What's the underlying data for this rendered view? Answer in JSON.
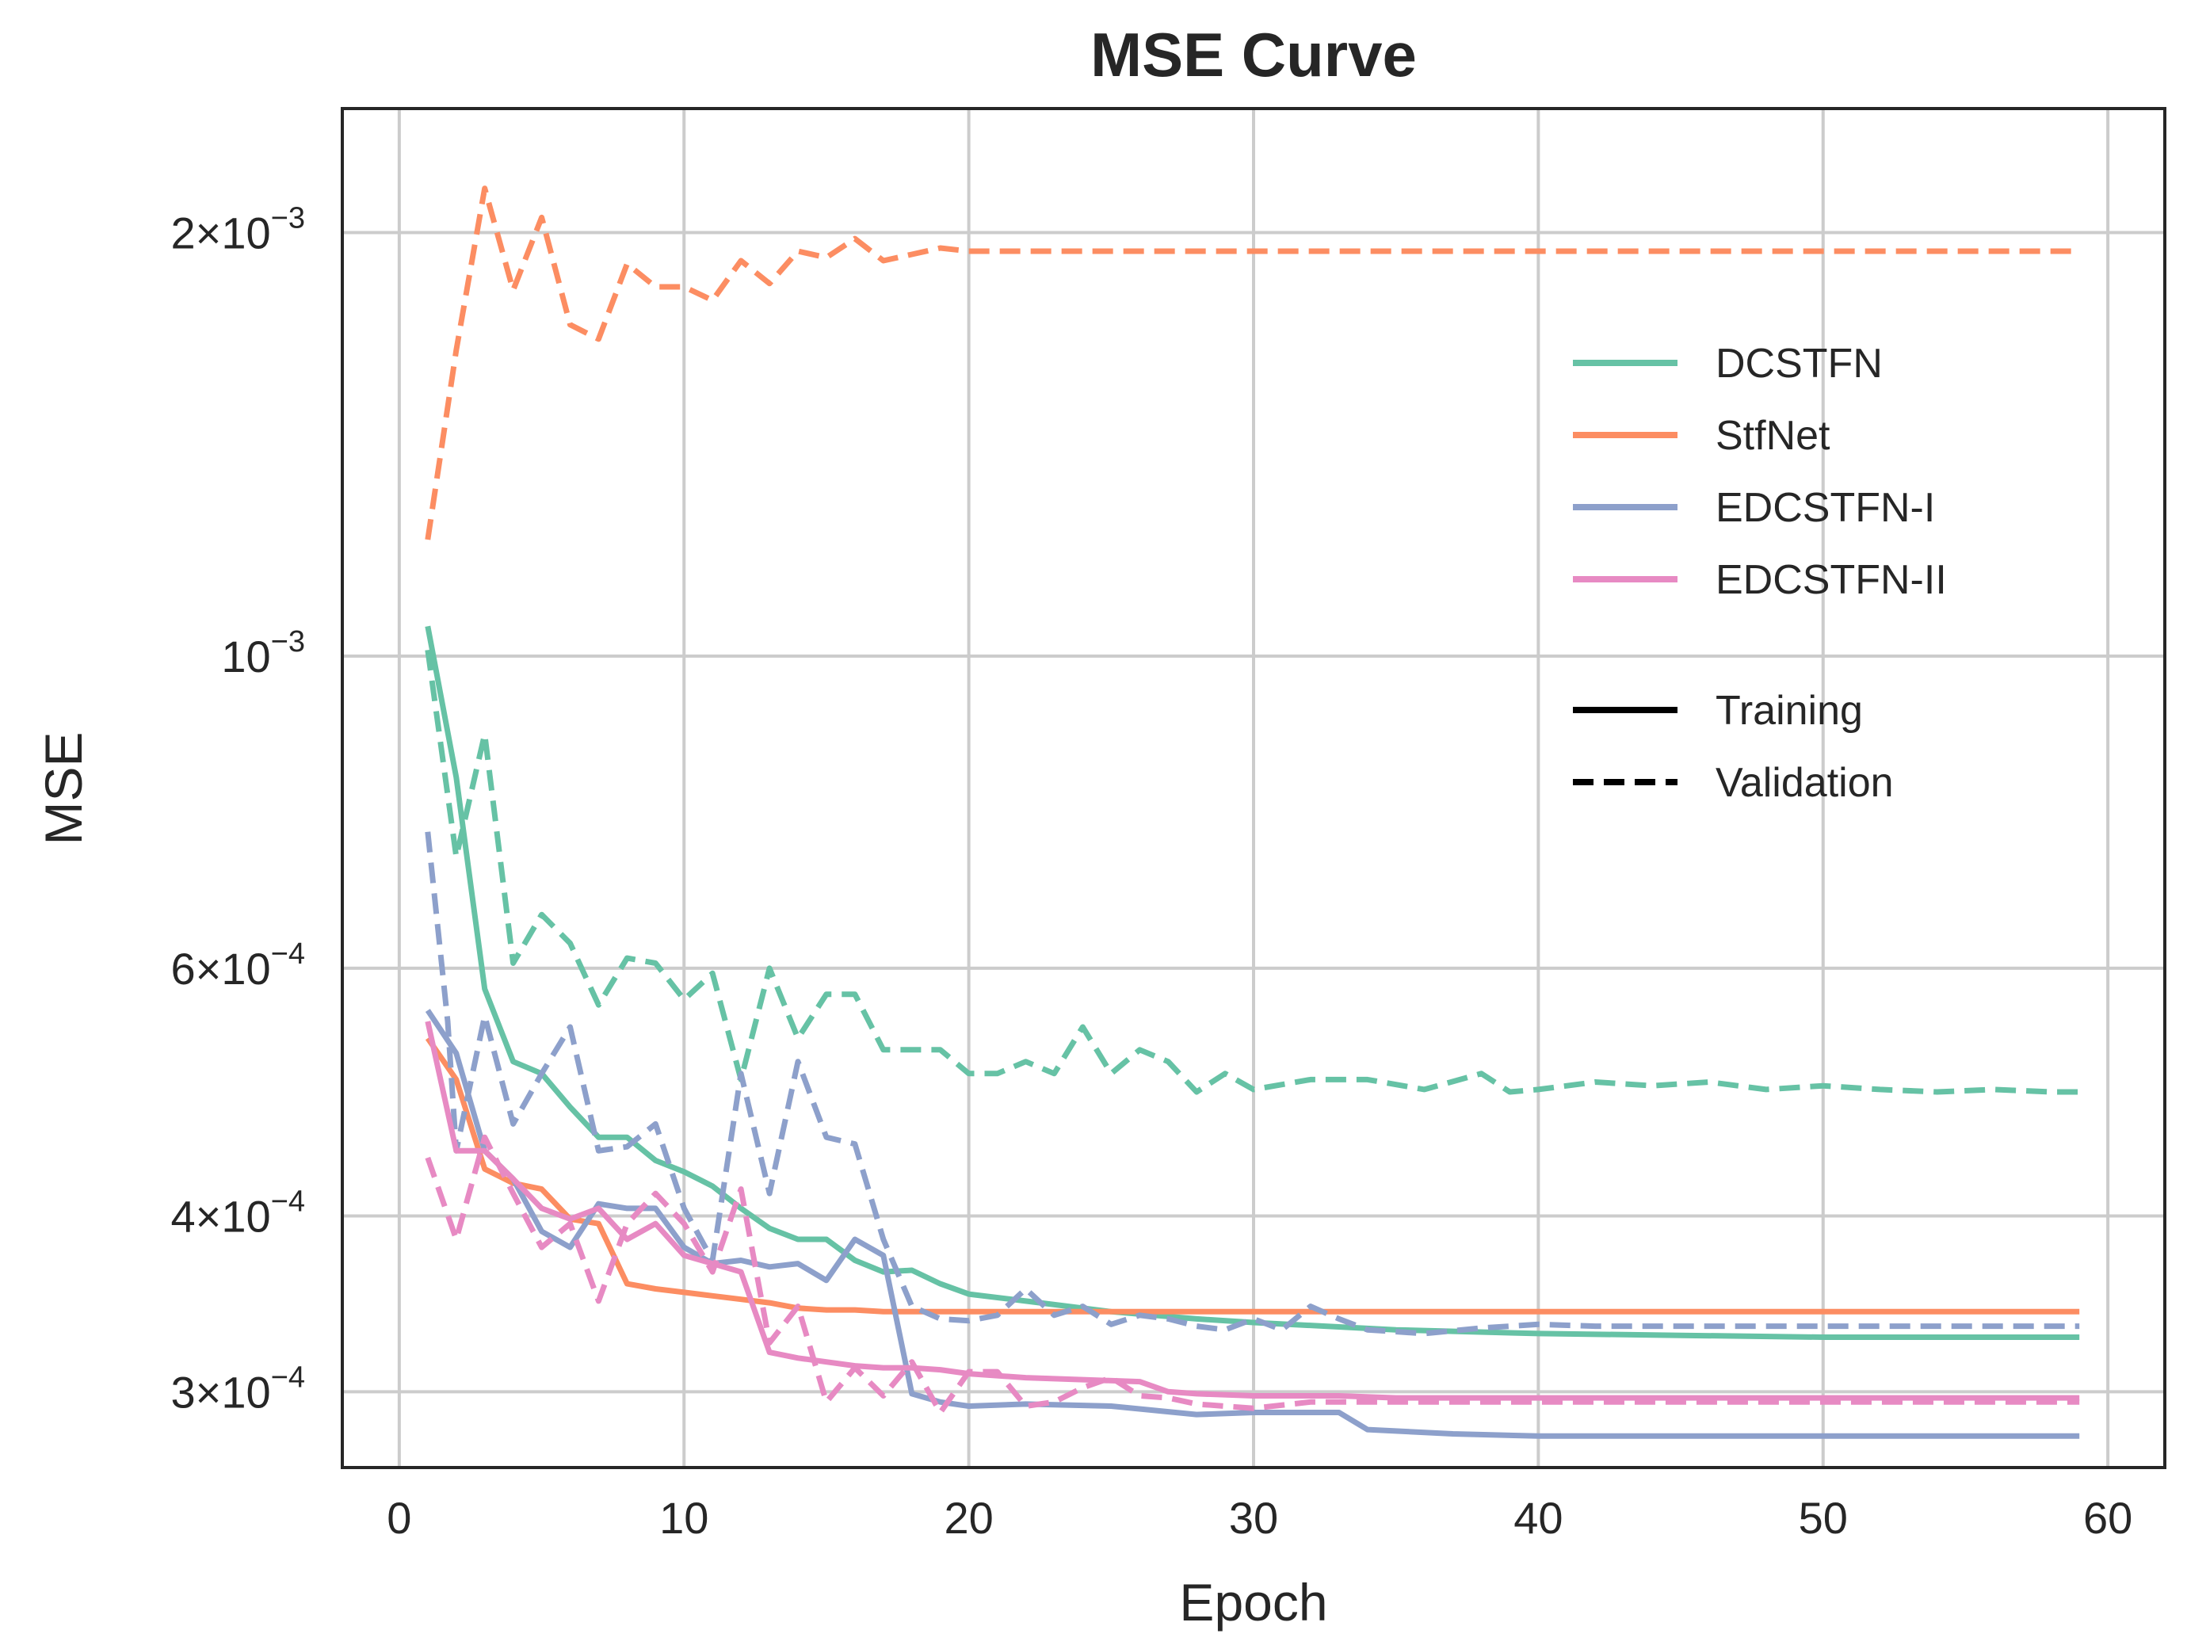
{
  "chart_data": {
    "type": "line",
    "title": "MSE Curve",
    "xlabel": "Epoch",
    "ylabel": "MSE",
    "yscale": "log",
    "xlim": [
      -2,
      62
    ],
    "ylim": [
      0.000265,
      0.00245
    ],
    "grid": true,
    "legend_position": "right",
    "x_ticks": [
      0,
      10,
      20,
      30,
      40,
      50,
      60
    ],
    "y_ticks": [
      {
        "value": 0.002,
        "base": "2×10",
        "exp": "−3"
      },
      {
        "value": 0.001,
        "base": "10",
        "exp": "−3"
      },
      {
        "value": 0.0006,
        "base": "6×10",
        "exp": "−4"
      },
      {
        "value": 0.0004,
        "base": "4×10",
        "exp": "−4"
      },
      {
        "value": 0.0003,
        "base": "3×10",
        "exp": "−4"
      }
    ],
    "series": [
      {
        "name": "DCSTFN",
        "color": "#66c2a5",
        "style": "solid",
        "x": [
          1,
          2,
          3,
          4,
          5,
          6,
          7,
          8,
          9,
          10,
          11,
          12,
          13,
          14,
          15,
          16,
          17,
          18,
          19,
          20,
          22,
          25,
          28,
          30,
          35,
          40,
          45,
          50,
          55,
          59
        ],
        "values": [
          0.00105,
          0.00082,
          0.00058,
          0.000515,
          0.000505,
          0.000478,
          0.000455,
          0.000455,
          0.000438,
          0.00043,
          0.00042,
          0.000405,
          0.000392,
          0.000385,
          0.000385,
          0.000372,
          0.000365,
          0.000366,
          0.000358,
          0.000352,
          0.000348,
          0.000342,
          0.000338,
          0.000336,
          0.000332,
          0.00033,
          0.000329,
          0.000328,
          0.000328,
          0.000328
        ]
      },
      {
        "name": "DCSTFN",
        "color": "#66c2a5",
        "style": "dashed",
        "x": [
          1,
          2,
          3,
          4,
          5,
          6,
          7,
          8,
          9,
          10,
          11,
          12,
          13,
          14,
          15,
          16,
          17,
          18,
          19,
          20,
          21,
          22,
          23,
          24,
          25,
          26,
          27,
          28,
          29,
          30,
          32,
          34,
          36,
          38,
          39,
          40,
          42,
          44,
          46,
          48,
          50,
          52,
          54,
          56,
          58,
          59
        ],
        "values": [
          0.00101,
          0.00072,
          0.00088,
          0.000605,
          0.000655,
          0.000625,
          0.000565,
          0.00061,
          0.000605,
          0.00057,
          0.000595,
          0.0005,
          0.0006,
          0.000535,
          0.000575,
          0.000575,
          0.000525,
          0.000525,
          0.000525,
          0.000505,
          0.000505,
          0.000515,
          0.000505,
          0.000545,
          0.000505,
          0.000525,
          0.000515,
          0.00049,
          0.000505,
          0.000492,
          0.0005,
          0.0005,
          0.000492,
          0.000505,
          0.00049,
          0.000492,
          0.000498,
          0.000495,
          0.000498,
          0.000492,
          0.000495,
          0.000492,
          0.00049,
          0.000492,
          0.00049,
          0.00049
        ]
      },
      {
        "name": "StfNet",
        "color": "#fc8d62",
        "style": "solid",
        "x": [
          1,
          2,
          3,
          4,
          5,
          6,
          7,
          8,
          9,
          10,
          11,
          12,
          13,
          14,
          15,
          16,
          17,
          18,
          19,
          20,
          25,
          30,
          35,
          40,
          45,
          50,
          55,
          59
        ],
        "values": [
          0.000535,
          0.0005,
          0.000432,
          0.000422,
          0.000418,
          0.000398,
          0.000395,
          0.000358,
          0.000355,
          0.000353,
          0.000351,
          0.000349,
          0.000347,
          0.000344,
          0.000343,
          0.000343,
          0.000342,
          0.000342,
          0.000342,
          0.000342,
          0.000342,
          0.000342,
          0.000342,
          0.000342,
          0.000342,
          0.000342,
          0.000342,
          0.000342
        ]
      },
      {
        "name": "StfNet",
        "color": "#fc8d62",
        "style": "dashed",
        "x": [
          1,
          2,
          3,
          4,
          5,
          6,
          7,
          8,
          9,
          10,
          11,
          12,
          13,
          14,
          15,
          16,
          17,
          18,
          19,
          20,
          25,
          30,
          35,
          40,
          45,
          50,
          55,
          59
        ],
        "values": [
          0.00121,
          0.00165,
          0.00215,
          0.00182,
          0.00205,
          0.00172,
          0.00168,
          0.0019,
          0.00183,
          0.00183,
          0.00179,
          0.00191,
          0.00184,
          0.00194,
          0.00192,
          0.00198,
          0.00191,
          0.00193,
          0.00195,
          0.00194,
          0.00194,
          0.00194,
          0.00194,
          0.00194,
          0.00194,
          0.00194,
          0.00194,
          0.00194
        ]
      },
      {
        "name": "EDCSTFN-I",
        "color": "#8da0cb",
        "style": "solid",
        "x": [
          1,
          2,
          3,
          4,
          5,
          6,
          7,
          8,
          9,
          10,
          11,
          12,
          13,
          14,
          15,
          16,
          17,
          18,
          19,
          20,
          22,
          25,
          28,
          30,
          33,
          34,
          37,
          40,
          45,
          50,
          55,
          59
        ],
        "values": [
          0.00056,
          0.000522,
          0.000445,
          0.000425,
          0.00039,
          0.00038,
          0.000408,
          0.000405,
          0.000405,
          0.00038,
          0.00037,
          0.000372,
          0.000368,
          0.00037,
          0.00036,
          0.000385,
          0.000375,
          0.000299,
          0.000295,
          0.000293,
          0.000294,
          0.000293,
          0.000289,
          0.00029,
          0.00029,
          0.000282,
          0.00028,
          0.000279,
          0.000279,
          0.000279,
          0.000279,
          0.000279
        ]
      },
      {
        "name": "EDCSTFN-I",
        "color": "#8da0cb",
        "style": "dashed",
        "x": [
          1,
          1.7,
          2,
          3,
          4,
          5,
          6,
          7,
          8,
          9,
          10,
          11,
          12,
          13,
          14,
          15,
          16,
          17,
          18,
          19,
          20,
          21,
          22,
          23,
          24,
          25,
          26,
          27,
          28,
          29,
          30,
          31,
          32,
          33,
          34,
          36,
          38,
          40,
          42,
          45,
          50,
          55,
          59
        ],
        "values": [
          0.00075,
          0.00055,
          0.000445,
          0.000555,
          0.000465,
          0.000505,
          0.000545,
          0.000445,
          0.000448,
          0.000465,
          0.000405,
          0.000372,
          0.000505,
          0.000415,
          0.000515,
          0.000455,
          0.00045,
          0.000385,
          0.000345,
          0.000338,
          0.000337,
          0.00034,
          0.000355,
          0.00034,
          0.000345,
          0.000335,
          0.00034,
          0.000338,
          0.000334,
          0.000332,
          0.000338,
          0.000332,
          0.000345,
          0.000338,
          0.000332,
          0.00033,
          0.000333,
          0.000335,
          0.000334,
          0.000334,
          0.000334,
          0.000334,
          0.000334
        ]
      },
      {
        "name": "EDCSTFN-II",
        "color": "#e78ac3",
        "style": "solid",
        "x": [
          1,
          2,
          3,
          4,
          5,
          6,
          7,
          8,
          9,
          10,
          11,
          12,
          13,
          14,
          15,
          16,
          17,
          18,
          19,
          20,
          22,
          24,
          26,
          27,
          28,
          30,
          33,
          35,
          40,
          45,
          50,
          55,
          59
        ],
        "values": [
          0.00055,
          0.000445,
          0.000445,
          0.000425,
          0.000405,
          0.000398,
          0.000405,
          0.000385,
          0.000395,
          0.000375,
          0.00037,
          0.000365,
          0.00032,
          0.000317,
          0.000315,
          0.000313,
          0.000312,
          0.000312,
          0.000311,
          0.000309,
          0.000307,
          0.000306,
          0.000305,
          0.0003,
          0.000299,
          0.000298,
          0.000298,
          0.000297,
          0.000297,
          0.000297,
          0.000297,
          0.000297,
          0.000297
        ]
      },
      {
        "name": "EDCSTFN-II",
        "color": "#e78ac3",
        "style": "dashed",
        "x": [
          1,
          2,
          3,
          4,
          5,
          6,
          7,
          8,
          9,
          10,
          11,
          12,
          13,
          14,
          15,
          16,
          17,
          18,
          19,
          20,
          21,
          22,
          23,
          24,
          25,
          26,
          27,
          28,
          30,
          32,
          34,
          36,
          40,
          45,
          50,
          55,
          59
        ],
        "values": [
          0.00044,
          0.000385,
          0.000455,
          0.000415,
          0.00038,
          0.000395,
          0.000348,
          0.000395,
          0.000415,
          0.000395,
          0.000365,
          0.000418,
          0.000325,
          0.000345,
          0.000295,
          0.000312,
          0.000298,
          0.000315,
          0.00029,
          0.00031,
          0.00031,
          0.000293,
          0.000295,
          0.000302,
          0.000307,
          0.000298,
          0.000297,
          0.000294,
          0.000292,
          0.000295,
          0.000295,
          0.000295,
          0.000295,
          0.000295,
          0.000295,
          0.000295,
          0.000295
        ]
      }
    ],
    "legend": {
      "models": [
        {
          "name": "DCSTFN",
          "color": "#66c2a5"
        },
        {
          "name": "StfNet",
          "color": "#fc8d62"
        },
        {
          "name": "EDCSTFN-I",
          "color": "#8da0cb"
        },
        {
          "name": "EDCSTFN-II",
          "color": "#e78ac3"
        }
      ],
      "styles": [
        {
          "name": "Training",
          "style": "solid"
        },
        {
          "name": "Validation",
          "style": "dashed"
        }
      ]
    }
  }
}
